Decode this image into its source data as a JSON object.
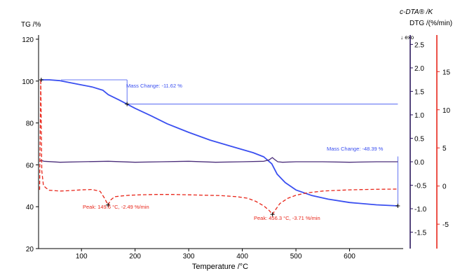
{
  "chart_data": {
    "type": "line",
    "xlabel": "Temperature /°C",
    "x_ticks": [
      100,
      200,
      300,
      400,
      500,
      600
    ],
    "xlim": [
      20,
      700
    ],
    "axes": {
      "tg": {
        "label": "TG /%",
        "range": [
          20,
          122
        ],
        "ticks": [
          20,
          40,
          60,
          80,
          100,
          120
        ],
        "color": "#000000"
      },
      "dta": {
        "label": "c-DTA® /K",
        "direction": "↓ exo",
        "range": [
          -1.85,
          2.7
        ],
        "ticks": [
          "2.5",
          "2.0",
          "1.5",
          "1.0",
          "0.5",
          "0.0",
          "-0.5",
          "-1.0",
          "-1.5"
        ],
        "color": "#2d1a5e"
      },
      "dtg": {
        "label": "DTG /(%/min)",
        "range": [
          -8.2,
          19.8
        ],
        "ticks": [
          "15",
          "10",
          "5",
          "0",
          "-5"
        ],
        "color": "#e8261a"
      }
    },
    "series": [
      {
        "axis": "tg",
        "color": "#3a4ff0",
        "style": "solid",
        "x": [
          25,
          40,
          60,
          80,
          100,
          120,
          140,
          150,
          170,
          185,
          200,
          230,
          260,
          300,
          340,
          380,
          420,
          440,
          455,
          465,
          480,
          500,
          530,
          560,
          600,
          650,
          690
        ],
        "y": [
          100.6,
          100.6,
          100.2,
          99.2,
          98.2,
          97.2,
          95.6,
          93.5,
          91.0,
          89.0,
          87.0,
          83.4,
          79.6,
          75.5,
          71.8,
          68.8,
          65.8,
          63.8,
          60.5,
          55.5,
          51.5,
          48.0,
          45.3,
          43.6,
          42.0,
          40.9,
          40.4
        ]
      },
      {
        "axis": "dta",
        "color": "#4a2d7a",
        "style": "solid",
        "x": [
          22,
          25,
          30,
          60,
          100,
          150,
          200,
          250,
          300,
          350,
          400,
          440,
          450,
          456,
          460,
          466,
          475,
          500,
          550,
          600,
          650,
          690
        ],
        "y": [
          0.0,
          0.03,
          0.01,
          -0.01,
          0.0,
          0.01,
          -0.01,
          0.0,
          0.01,
          -0.01,
          0.0,
          0.01,
          0.04,
          0.09,
          0.05,
          0.0,
          -0.01,
          0.0,
          0.0,
          -0.01,
          0.0,
          0.0
        ]
      },
      {
        "axis": "dtg",
        "color": "#e8261a",
        "style": "dashed",
        "x": [
          22,
          24,
          26,
          29,
          33,
          40,
          60,
          80,
          100,
          120,
          135,
          143,
          149.6,
          155,
          162,
          175,
          190,
          210,
          240,
          270,
          300,
          330,
          360,
          390,
          410,
          425,
          440,
          450,
          456.3,
          462,
          470,
          485,
          500,
          520,
          550,
          600,
          650,
          690
        ],
        "y": [
          -0.5,
          14.0,
          2.0,
          0.1,
          -0.2,
          -0.55,
          -0.65,
          -0.6,
          -0.5,
          -0.45,
          -0.7,
          -1.6,
          -2.49,
          -1.8,
          -1.4,
          -1.3,
          -1.2,
          -1.15,
          -1.1,
          -1.1,
          -1.15,
          -1.2,
          -1.25,
          -1.4,
          -1.6,
          -2.0,
          -2.6,
          -3.2,
          -3.71,
          -3.1,
          -2.3,
          -1.6,
          -1.2,
          -0.9,
          -0.65,
          -0.5,
          -0.42,
          -0.4
        ]
      }
    ],
    "annotations": {
      "mass_change_1": "Mass Change: -11.62 %",
      "mass_change_2": "Mass Change: -48.39 %",
      "peak_1": "Peak: 149.6 °C, -2.49 %/min",
      "peak_2": "Peak: 456.3 °C, -3.71 %/min"
    },
    "grid": false
  }
}
